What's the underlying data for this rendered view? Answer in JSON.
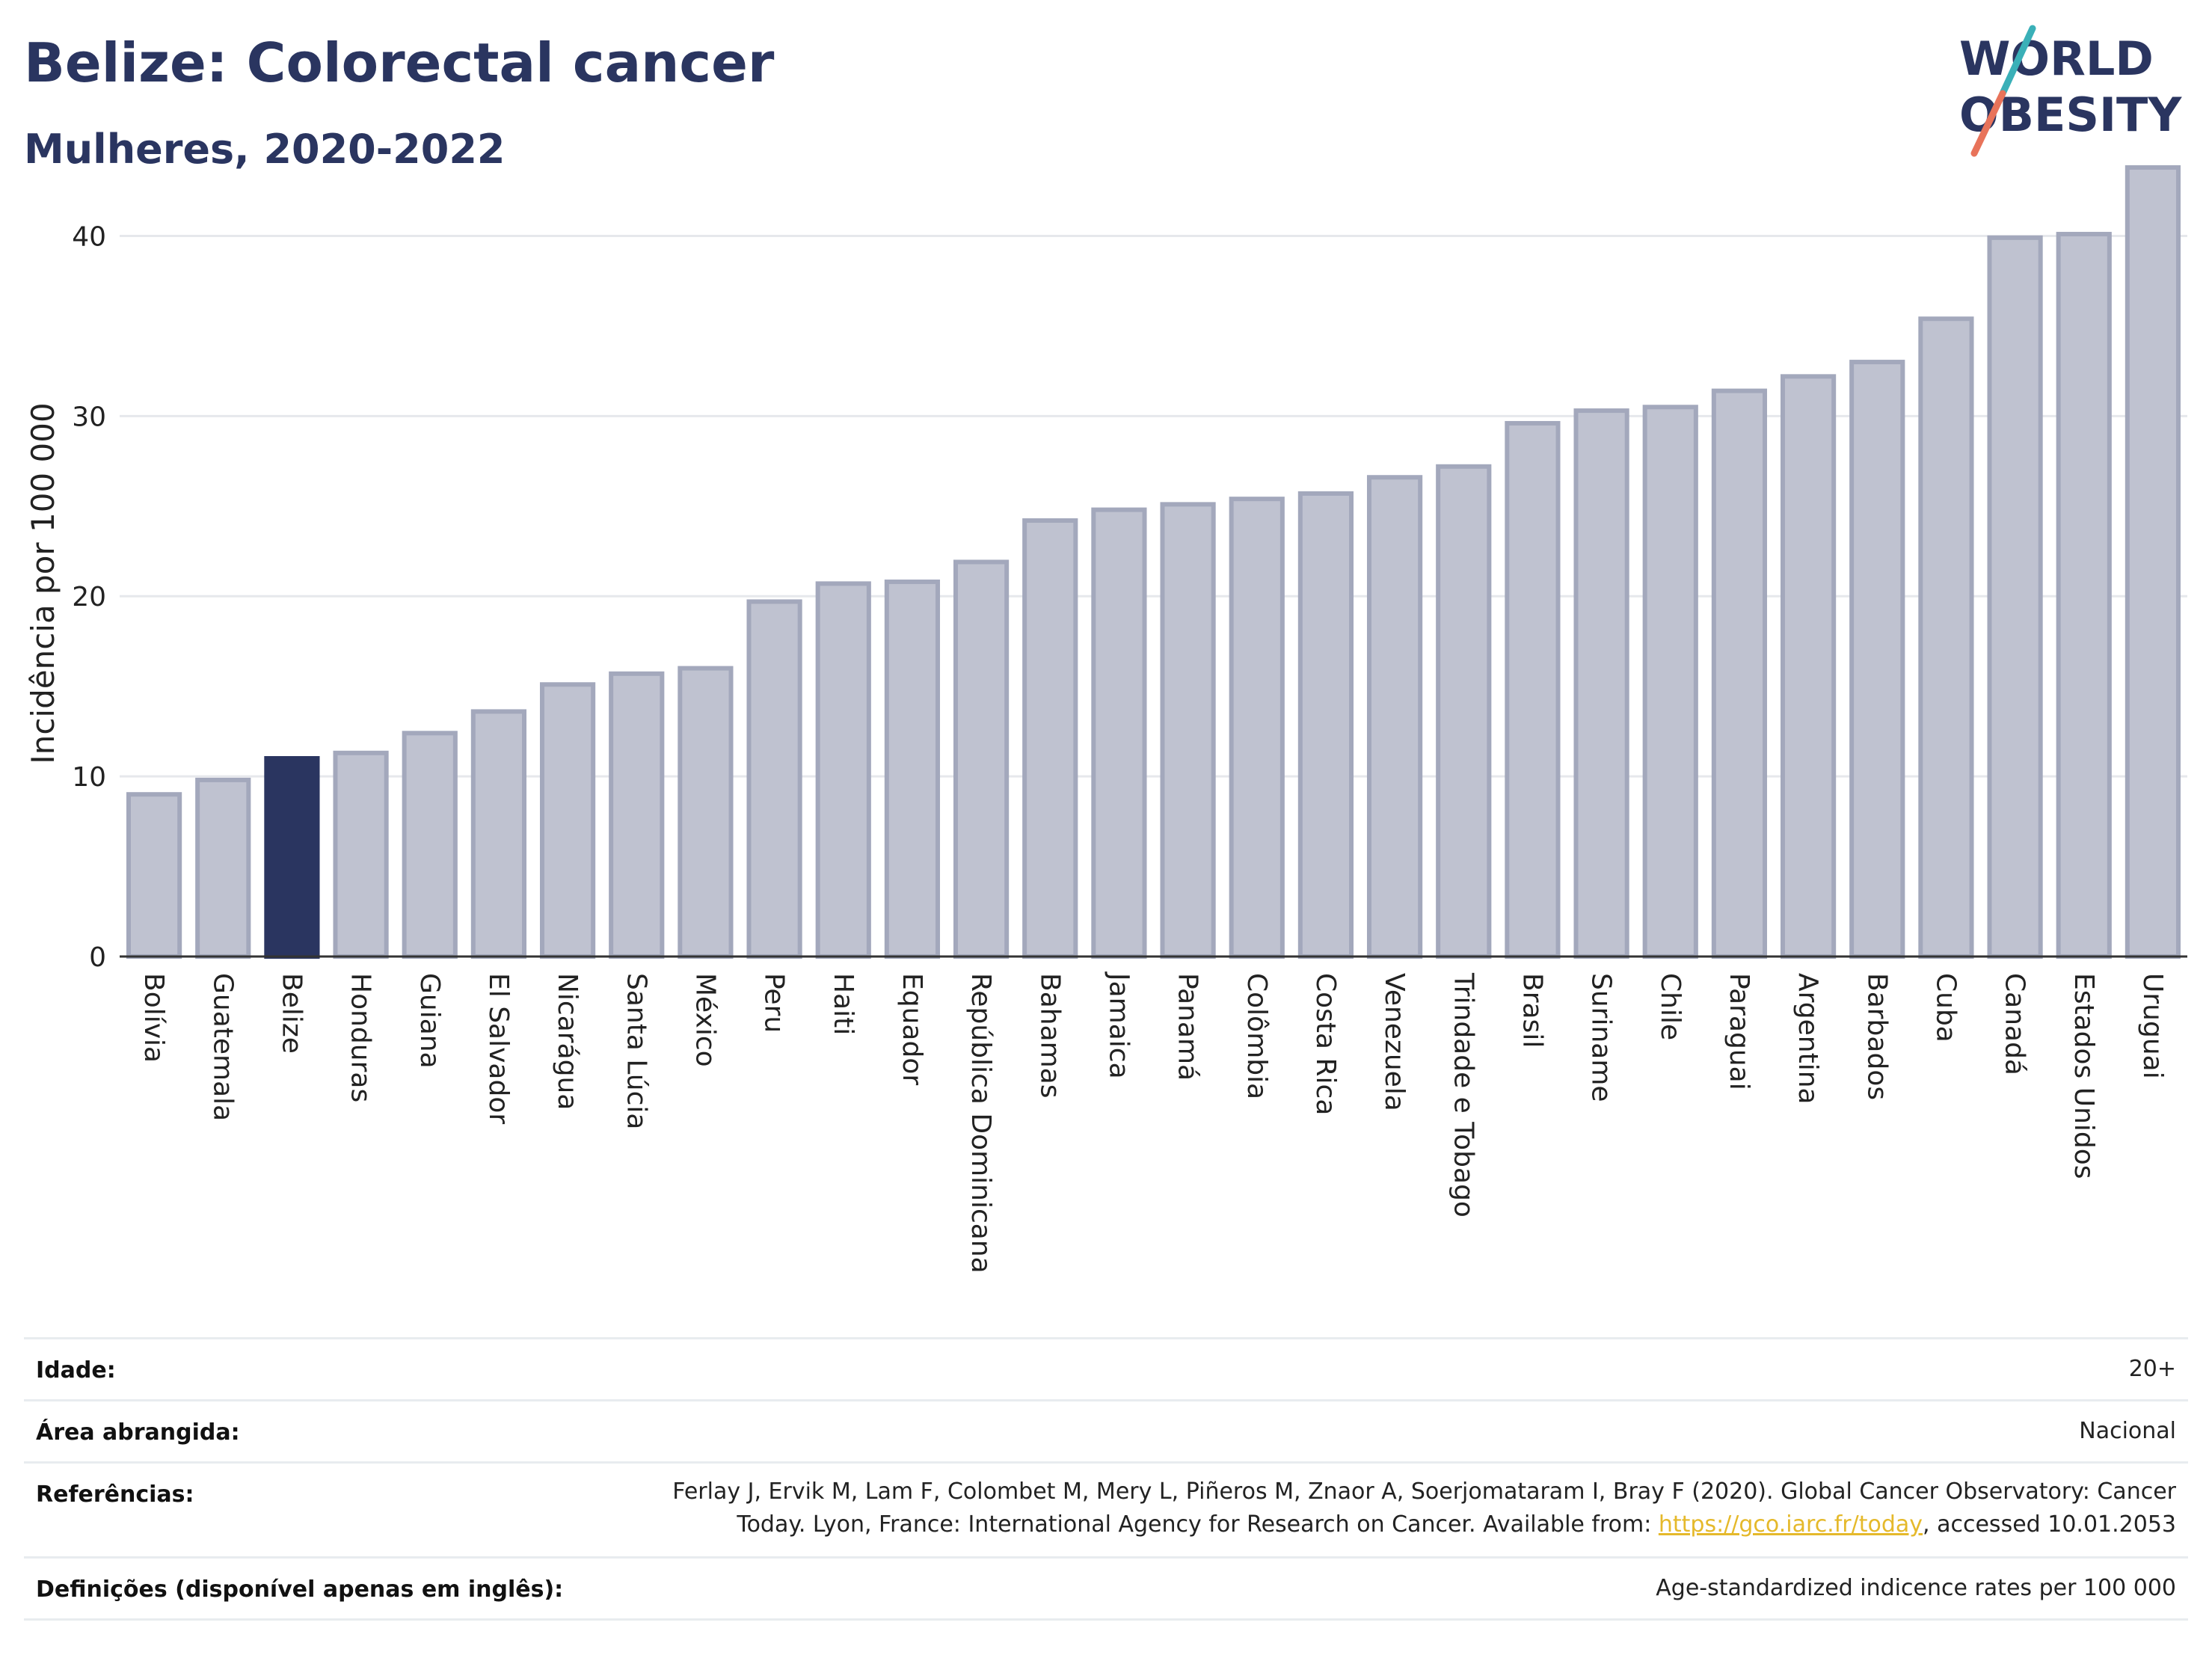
{
  "header": {
    "title": "Belize: Colorectal cancer",
    "subtitle": "Mulheres, 2020-2022"
  },
  "logo": {
    "line1": "WORLD",
    "line2": "OBESITY",
    "colors": {
      "text": "#2a3560",
      "slash_top": "#3ab0b8",
      "slash_bottom": "#e8735a"
    }
  },
  "chart_data": {
    "type": "bar",
    "ylabel": "Incidência por 100 000",
    "xlabel": "",
    "ylim": [
      0,
      45
    ],
    "yticks": [
      0,
      10,
      20,
      30,
      40
    ],
    "grid": true,
    "highlight": "Belize",
    "colors": {
      "bar": "#bfc2d0",
      "bar_border": "#a3a8bc",
      "highlight": "#2a3560",
      "grid": "#e6e8ec"
    },
    "categories": [
      "Bolívia",
      "Guatemala",
      "Belize",
      "Honduras",
      "Guiana",
      "El Salvador",
      "Nicarágua",
      "Santa Lúcia",
      "México",
      "Peru",
      "Haiti",
      "Equador",
      "República Dominicana",
      "Bahamas",
      "Jamaica",
      "Panamá",
      "Colômbia",
      "Costa Rica",
      "Venezuela",
      "Trindade e Tobago",
      "Brasil",
      "Suriname",
      "Chile",
      "Paraguai",
      "Argentina",
      "Barbados",
      "Cuba",
      "Canadá",
      "Estados Unidos",
      "Uruguai"
    ],
    "values": [
      9.0,
      9.8,
      11.0,
      11.3,
      12.4,
      13.6,
      15.1,
      15.7,
      16.0,
      19.7,
      20.7,
      20.8,
      21.9,
      24.2,
      24.8,
      25.1,
      25.4,
      25.7,
      26.6,
      27.2,
      29.6,
      30.3,
      30.5,
      31.4,
      32.2,
      33.0,
      35.4,
      39.9,
      40.1,
      43.8
    ]
  },
  "info": {
    "rows": [
      {
        "label": "Idade:",
        "value": "20+"
      },
      {
        "label": "Área abrangida:",
        "value": "Nacional"
      },
      {
        "label": "Referências:",
        "value_line1": "Ferlay J, Ervik M, Lam F, Colombet M, Mery L, Piñeros M, Znaor A, Soerjomataram I, Bray F (2020). Global Cancer Observatory: Cancer",
        "value_line2_pre": "Today. Lyon, France: International Agency for Research on Cancer. Available from: ",
        "link": "https://gco.iarc.fr/today",
        "value_line2_post": ", accessed 10.01.2053"
      },
      {
        "label": "Definições (disponível apenas em inglês):",
        "value": "Age-standardized indicence rates per 100 000"
      }
    ]
  }
}
